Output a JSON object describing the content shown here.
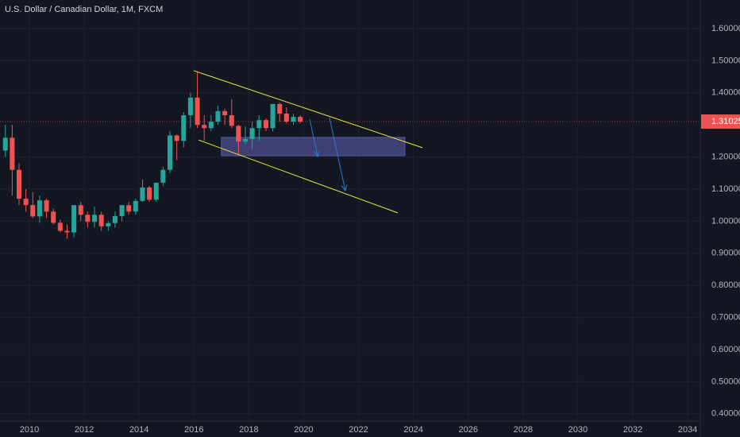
{
  "chart_data": {
    "type": "candlestick",
    "title": "U.S. Dollar / Canadian Dollar, 1M, FXCM",
    "up_color": "#26a69a",
    "down_color": "#ef5350",
    "background": "#131722",
    "grid": true,
    "xlim": [
      2008.93,
      2034.46
    ],
    "ylim": [
      0.3772,
      1.6891
    ],
    "xticks": [
      2010,
      2012,
      2014,
      2016,
      2018,
      2020,
      2022,
      2024,
      2026,
      2028,
      2030,
      2032,
      2034
    ],
    "yticks": [
      {
        "value": 1.6,
        "label": "1.60000"
      },
      {
        "value": 1.5,
        "label": "1.50000"
      },
      {
        "value": 1.4,
        "label": "1.40000"
      },
      {
        "value": 1.2,
        "label": "1.20000"
      },
      {
        "value": 1.1,
        "label": "1.10000"
      },
      {
        "value": 1.0,
        "label": "1.00000"
      },
      {
        "value": 0.9,
        "label": "0.90000"
      },
      {
        "value": 0.8,
        "label": "0.80000"
      },
      {
        "value": 0.7,
        "label": "0.70000"
      },
      {
        "value": 0.6,
        "label": "0.60000"
      },
      {
        "value": 0.5,
        "label": "0.50000"
      },
      {
        "value": 0.4,
        "label": "0.40000"
      }
    ],
    "x": [
      2009.125,
      2009.375,
      2009.625,
      2009.875,
      2010.125,
      2010.375,
      2010.625,
      2010.875,
      2011.125,
      2011.375,
      2011.625,
      2011.875,
      2012.125,
      2012.375,
      2012.625,
      2012.875,
      2013.125,
      2013.375,
      2013.625,
      2013.875,
      2014.125,
      2014.375,
      2014.625,
      2014.875,
      2015.125,
      2015.375,
      2015.625,
      2015.875,
      2016.125,
      2016.375,
      2016.625,
      2016.875,
      2017.125,
      2017.375,
      2017.625,
      2017.875,
      2018.125,
      2018.375,
      2018.625,
      2018.875,
      2019.125,
      2019.375,
      2019.625,
      2019.875
    ],
    "open": [
      1.22,
      1.26,
      1.16,
      1.07,
      1.05,
      1.015,
      1.065,
      1.03,
      0.995,
      0.97,
      0.965,
      1.05,
      1.02,
      0.998,
      1.02,
      0.984,
      0.994,
      1.016,
      1.05,
      1.03,
      1.063,
      1.105,
      1.067,
      1.12,
      1.16,
      1.267,
      1.25,
      1.33,
      1.385,
      1.3,
      1.29,
      1.31,
      1.343,
      1.33,
      1.297,
      1.248,
      1.256,
      1.29,
      1.315,
      1.29,
      1.365,
      1.335,
      1.31,
      1.325
    ],
    "high": [
      1.3,
      1.3,
      1.18,
      1.1,
      1.09,
      1.08,
      1.07,
      1.04,
      1.005,
      0.99,
      1.05,
      1.06,
      1.03,
      1.045,
      1.03,
      1.0,
      1.03,
      1.05,
      1.06,
      1.07,
      1.13,
      1.11,
      1.12,
      1.17,
      1.28,
      1.27,
      1.34,
      1.4,
      1.467,
      1.33,
      1.33,
      1.36,
      1.35,
      1.38,
      1.3,
      1.295,
      1.31,
      1.33,
      1.32,
      1.365,
      1.37,
      1.355,
      1.335,
      1.33
    ],
    "low": [
      1.2,
      1.08,
      1.05,
      1.03,
      1.01,
      0.995,
      1.01,
      0.99,
      0.965,
      0.945,
      0.95,
      1.0,
      0.98,
      0.98,
      0.97,
      0.97,
      0.98,
      1.0,
      1.02,
      1.02,
      1.06,
      1.06,
      1.06,
      1.11,
      1.15,
      1.19,
      1.23,
      1.29,
      1.29,
      1.25,
      1.28,
      1.3,
      1.3,
      1.29,
      1.206,
      1.24,
      1.225,
      1.25,
      1.28,
      1.28,
      1.31,
      1.305,
      1.3,
      1.305
    ],
    "close": [
      1.26,
      1.16,
      1.07,
      1.05,
      1.015,
      1.065,
      1.03,
      0.995,
      0.97,
      0.965,
      1.05,
      1.02,
      0.998,
      1.02,
      0.984,
      0.994,
      1.016,
      1.05,
      1.03,
      1.063,
      1.105,
      1.067,
      1.12,
      1.16,
      1.267,
      1.25,
      1.33,
      1.385,
      1.3,
      1.29,
      1.31,
      1.343,
      1.33,
      1.297,
      1.248,
      1.256,
      1.29,
      1.315,
      1.29,
      1.365,
      1.335,
      1.31,
      1.325,
      1.31025
    ],
    "last_price": 1.31025,
    "trend_lines": [
      {
        "color": "#e8e83a",
        "x": [
          2015.99,
          2024.33
        ],
        "y": [
          1.469,
          1.229
        ]
      },
      {
        "color": "#e8e83a",
        "x": [
          2016.17,
          2023.43
        ],
        "y": [
          1.253,
          1.026
        ]
      }
    ],
    "zone": {
      "color": "#5b5aa8",
      "x": [
        2017.0,
        2023.69
      ],
      "y": [
        1.261,
        1.204
      ]
    },
    "arrows": [
      {
        "color": "#2e7bc4",
        "x": [
          2020.22,
          2020.51
        ],
        "y": [
          1.318,
          1.201
        ]
      },
      {
        "color": "#2e7bc4",
        "x": [
          2020.94,
          2021.52
        ],
        "y": [
          1.323,
          1.095
        ]
      }
    ]
  }
}
